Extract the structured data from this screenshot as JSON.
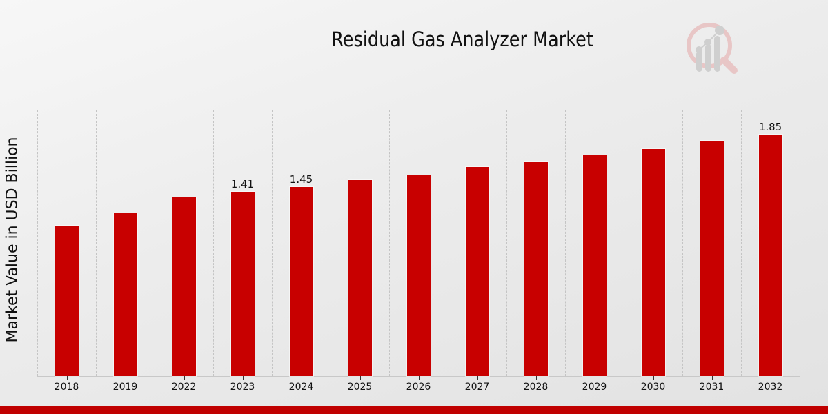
{
  "title": "Residual Gas Analyzer Market",
  "logo": {
    "icon": "magnifier-bar-chart-logo-icon"
  },
  "colors": {
    "bar": "#c80000",
    "footer": "#c00000",
    "grid": "#c4c4c4",
    "text": "#111111"
  },
  "chart_data": {
    "type": "bar",
    "title": "Residual Gas Analyzer Market",
    "xlabel": "",
    "ylabel": "Market Value in USD Billion",
    "categories": [
      "2018",
      "2019",
      "2022",
      "2023",
      "2024",
      "2025",
      "2026",
      "2027",
      "2028",
      "2029",
      "2030",
      "2031",
      "2032"
    ],
    "values": [
      1.15,
      1.25,
      1.37,
      1.41,
      1.45,
      1.5,
      1.54,
      1.6,
      1.64,
      1.69,
      1.74,
      1.8,
      1.85
    ],
    "data_labels": {
      "2023": "1.41",
      "2024": "1.45",
      "2032": "1.85"
    },
    "ylim": [
      0,
      2.03
    ],
    "grid": "vertical dashed separators between categories",
    "legend": "none",
    "y_ticks_visible": false
  }
}
